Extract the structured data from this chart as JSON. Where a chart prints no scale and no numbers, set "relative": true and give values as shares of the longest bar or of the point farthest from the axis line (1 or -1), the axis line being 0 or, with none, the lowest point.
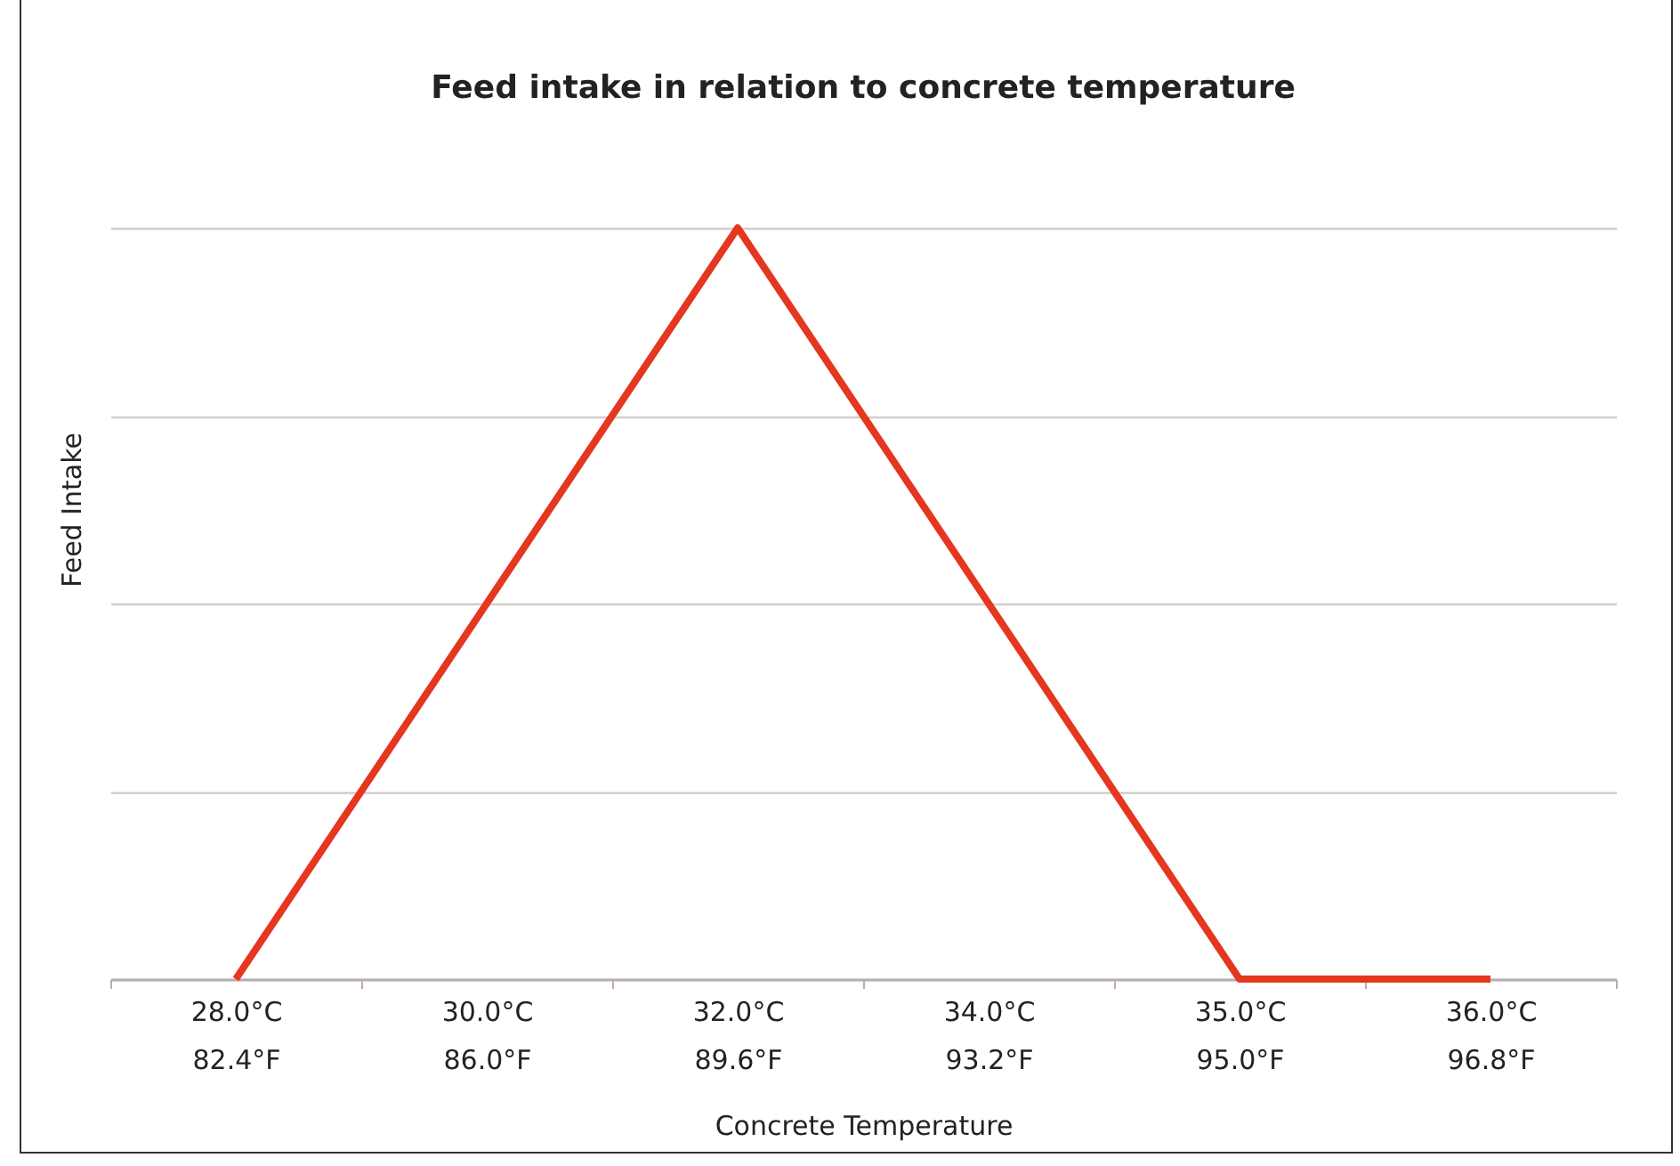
{
  "chart_data": {
    "type": "line",
    "title": "Feed intake in relation to concrete temperature",
    "xlabel": "Concrete Temperature",
    "ylabel": "Feed Intake",
    "categories": [
      "28.0°C\n82.4°F",
      "30.0°C\n86.0°F",
      "32.0°C\n89.6°F",
      "34.0°C\n93.2°F",
      "35.0°C\n95.0°F",
      "36.0°C\n96.8°F"
    ],
    "series": [
      {
        "color": "#e5361f",
        "values": [
          0,
          0.5,
          1,
          0.5,
          0,
          0
        ]
      }
    ],
    "relative": true,
    "grid": "y",
    "line_style": "solid"
  }
}
